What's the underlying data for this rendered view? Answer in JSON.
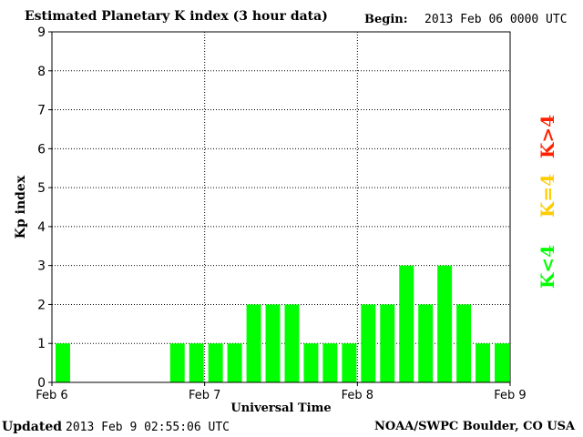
{
  "header": {
    "title": "Estimated Planetary K index (3 hour data)",
    "begin_label": "Begin:",
    "begin_value": "2013 Feb 06 0000 UTC"
  },
  "footer": {
    "updated_label": "Updated",
    "updated_value": "2013 Feb  9 02:55:06 UTC",
    "source": "NOAA/SWPC Boulder, CO USA"
  },
  "legend": {
    "high": "K>4",
    "mid": "K=4",
    "low": "K<4"
  },
  "colors": {
    "low": "#00ff00",
    "mid": "#ffcc00",
    "high": "#ff2200"
  },
  "chart_data": {
    "type": "bar",
    "title": "Estimated Planetary K index (3 hour data)",
    "xlabel": "Universal Time",
    "ylabel": "Kp index",
    "ylim": [
      0,
      9
    ],
    "yticks": [
      "0",
      "1",
      "2",
      "3",
      "4",
      "5",
      "6",
      "7",
      "8",
      "9"
    ],
    "xticks": [
      "Feb 6",
      "Feb 7",
      "Feb 8",
      "Feb 9"
    ],
    "grid": true,
    "interval_hours": 3,
    "start": "2013 Feb 06 0000 UTC",
    "values": [
      1,
      0,
      0,
      0,
      0,
      0,
      1,
      1,
      1,
      1,
      2,
      2,
      2,
      1,
      1,
      1,
      2,
      2,
      3,
      2,
      3,
      2,
      1,
      1
    ]
  }
}
